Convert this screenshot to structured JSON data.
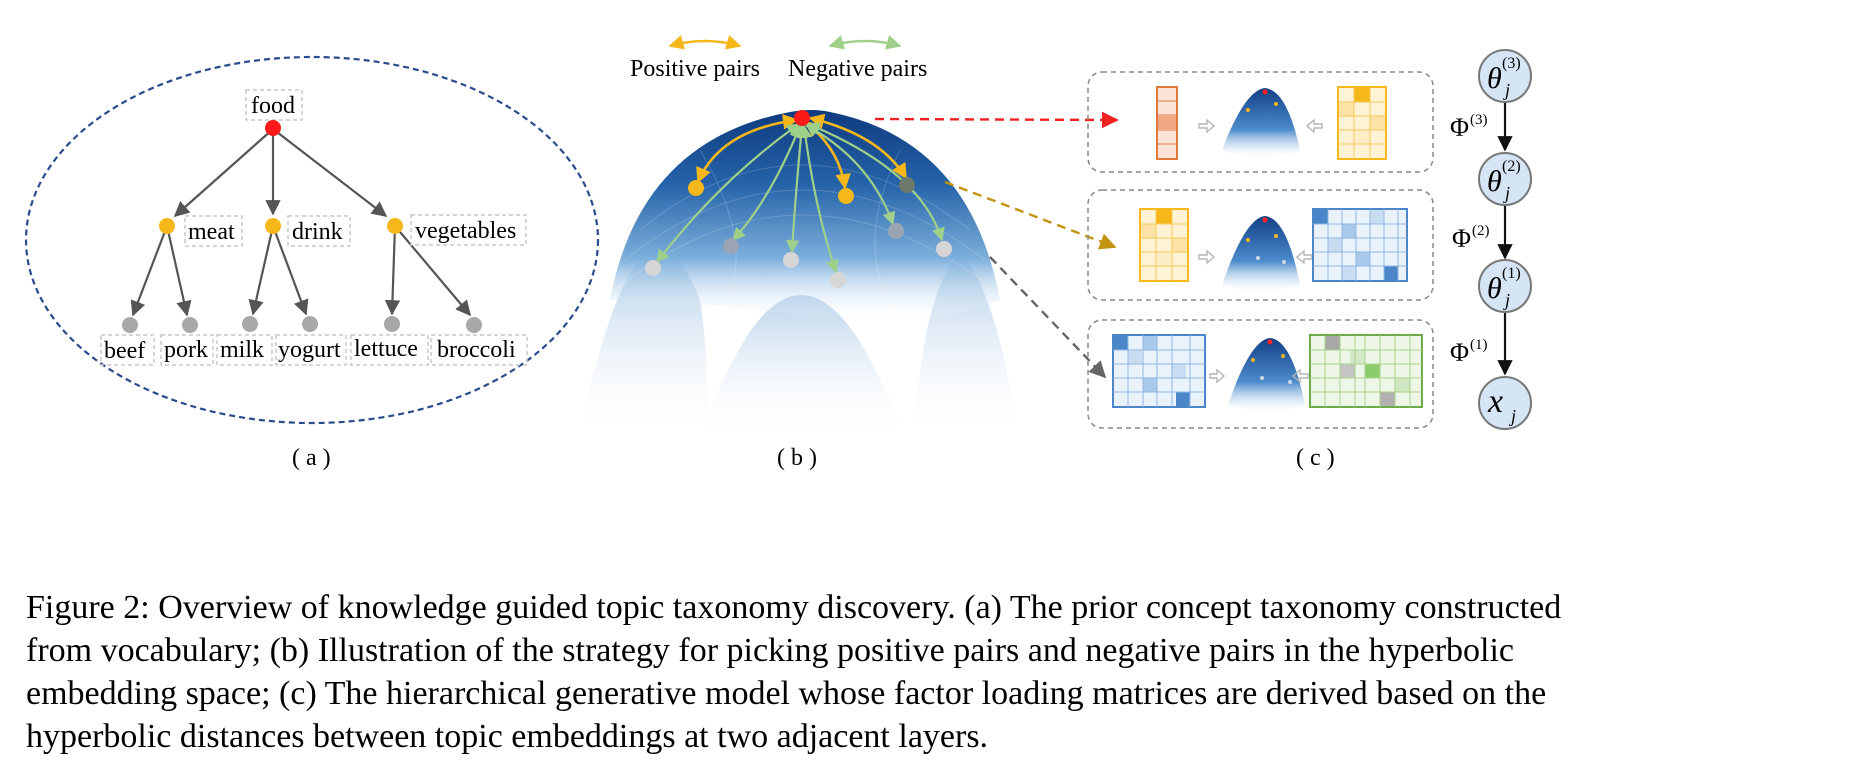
{
  "panel_a": {
    "label": "( a )",
    "root": "food",
    "mid": [
      "meat",
      "drink",
      "vegetables"
    ],
    "leaves": [
      "beef",
      "pork",
      "milk",
      "yogurt",
      "lettuce",
      "broccoli"
    ]
  },
  "panel_b": {
    "label": "( b )",
    "legend": {
      "positive": "Positive pairs",
      "negative": "Negative pairs"
    },
    "colors": {
      "positive": "#f5b71a",
      "negative": "#9fd08a",
      "root": "#ff1a1a"
    }
  },
  "panel_c": {
    "label": "( c )",
    "phis": [
      "Φ",
      "Φ",
      "Φ"
    ],
    "phi_sups": [
      "(3)",
      "(2)",
      "(1)"
    ],
    "nodes": [
      "θ",
      "θ",
      "θ",
      "x"
    ],
    "node_subs": [
      "j",
      "j",
      "j",
      "j"
    ],
    "node_sups": [
      "(3)",
      "(2)",
      "(1)",
      ""
    ]
  },
  "caption": {
    "lines": [
      "Figure 2: Overview of knowledge guided topic taxonomy discovery. (a) The prior concept taxonomy constructed",
      "from vocabulary; (b) Illustration of the strategy for picking positive pairs and negative pairs in the hyperbolic",
      "embedding space; (c) The hierarchical generative model whose factor loading matrices are derived based on the",
      "hyperbolic distances between topic embeddings at two adjacent layers."
    ]
  }
}
